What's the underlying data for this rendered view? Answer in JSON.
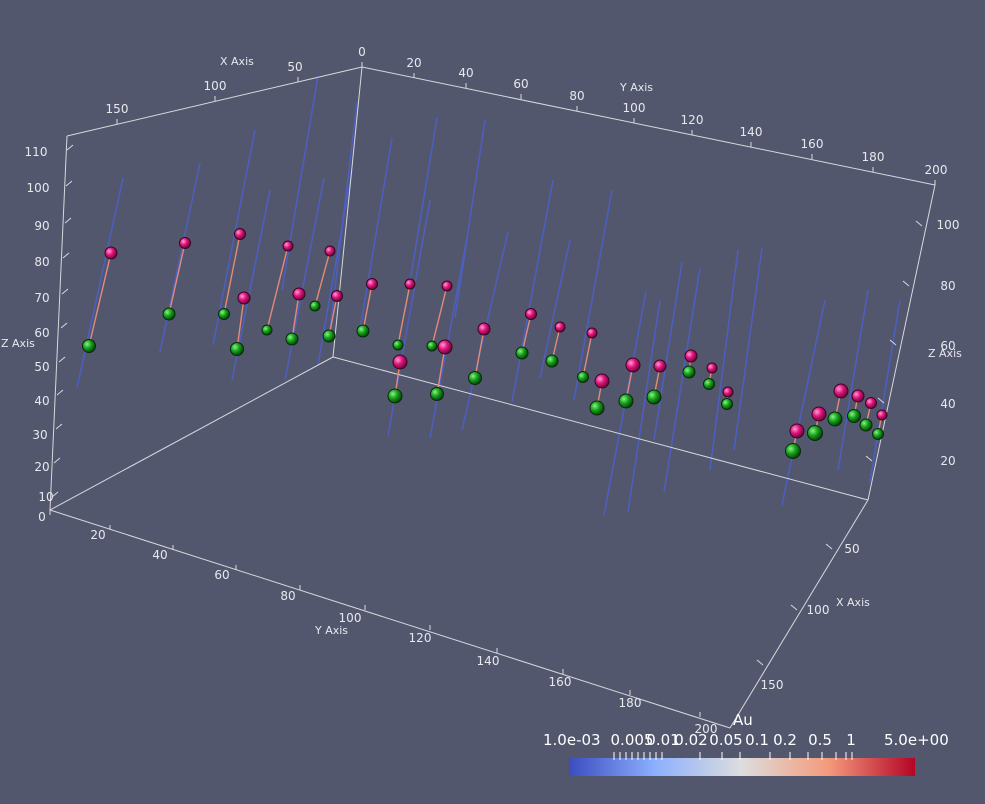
{
  "scene": {
    "background": "#52576e",
    "axis_color": "#d8d8dc",
    "drillhole_color": "#4e5fc4",
    "sample_line_color": "#e58a78",
    "top_marker_color": "#e3137f",
    "bottom_marker_color": "#17a51c"
  },
  "axes": {
    "x_axis_title": "X Axis",
    "y_axis_title": "Y Axis",
    "z_axis_title": "Z Axis",
    "top_x_ticks": [
      "150",
      "100",
      "50",
      "0"
    ],
    "top_y_ticks": [
      "20",
      "40",
      "60",
      "80",
      "100",
      "120",
      "140",
      "160",
      "180",
      "200"
    ],
    "left_z_ticks": [
      "10",
      "20",
      "30",
      "40",
      "50",
      "60",
      "70",
      "80",
      "90",
      "100",
      "110"
    ],
    "bottom_y_ticks": [
      "0",
      "20",
      "40",
      "60",
      "80",
      "100",
      "120",
      "140",
      "160",
      "180",
      "200"
    ],
    "right_z_ticks": [
      "20",
      "40",
      "60",
      "80",
      "100"
    ],
    "right_x_ticks": [
      "50",
      "100",
      "150"
    ]
  },
  "colorbar": {
    "title": "Au",
    "min_label": "1.0e-03",
    "max_label": "5.0e+00",
    "tick_labels": [
      "0.005",
      "0.01",
      "0.02",
      "0.05",
      "0.1",
      "0.2",
      "0.5",
      "1"
    ],
    "color_low": "#3b4cc0",
    "color_mid": "#dddddd",
    "color_high": "#b40426"
  }
}
